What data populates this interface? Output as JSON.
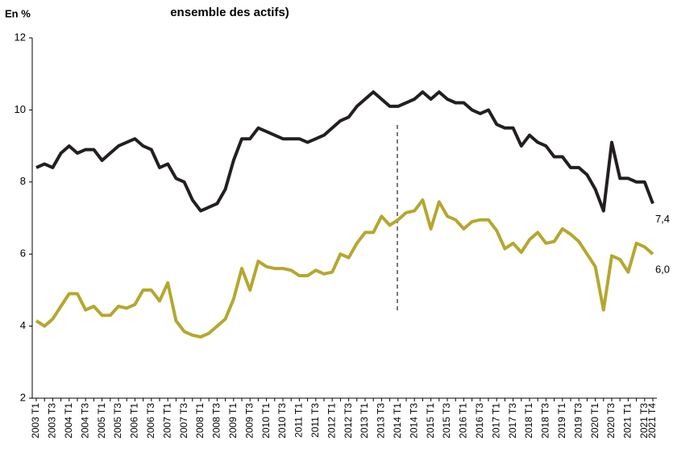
{
  "chart_data": {
    "type": "line",
    "title": "ensemble des actifs)",
    "y_label": "En %",
    "categories": [
      "2003 T1",
      null,
      "2003 T3",
      null,
      "2004 T1",
      null,
      "2004 T3",
      null,
      "2005 T1",
      null,
      "2005 T3",
      null,
      "2006 T1",
      null,
      "2006 T3",
      null,
      "2007 T1",
      null,
      "2007 T3",
      null,
      "2008 T1",
      null,
      "2008 T3",
      null,
      "2009 T1",
      null,
      "2009 T3",
      null,
      "2010 T1",
      null,
      "2010 T3",
      null,
      "2011 T1",
      null,
      "2011 T3",
      null,
      "2012 T1",
      null,
      "2012 T3",
      null,
      "2013 T1",
      null,
      "2013 T3",
      null,
      "2014 T1",
      null,
      "2014 T3",
      null,
      "2015 T1",
      null,
      "2015 T3",
      null,
      "2016 T1",
      null,
      "2016 T3",
      null,
      "2017 T1",
      null,
      "2017 T3",
      null,
      "2018 T1",
      null,
      "2018 T3",
      null,
      "2019 T1",
      null,
      "2019 T3",
      null,
      "2020 T1",
      null,
      "2020 T3",
      null,
      "2021 T1",
      null,
      "2021 T3",
      "2021 T4"
    ],
    "series": [
      {
        "color": "#231f20",
        "values": [
          8.4,
          8.5,
          8.4,
          8.8,
          9.0,
          8.8,
          8.9,
          8.9,
          8.6,
          8.8,
          9.0,
          9.1,
          9.2,
          9.0,
          8.9,
          8.4,
          8.5,
          8.1,
          8.0,
          7.5,
          7.2,
          7.3,
          7.4,
          7.8,
          8.6,
          9.2,
          9.2,
          9.5,
          9.4,
          9.3,
          9.2,
          9.2,
          9.2,
          9.1,
          9.2,
          9.3,
          9.5,
          9.7,
          9.8,
          10.1,
          10.3,
          10.5,
          10.3,
          10.1,
          10.1,
          10.2,
          10.3,
          10.5,
          10.3,
          10.5,
          10.3,
          10.2,
          10.2,
          10.0,
          9.9,
          10.0,
          9.6,
          9.5,
          9.5,
          9.0,
          9.3,
          9.1,
          9.0,
          8.7,
          8.7,
          8.4,
          8.4,
          8.2,
          7.8,
          7.2,
          9.1,
          8.1,
          8.1,
          8.0,
          8.0,
          7.4
        ],
        "value_labels": [
          null,
          null,
          null,
          null,
          null,
          null,
          null,
          null,
          null,
          null,
          null,
          null,
          null,
          null,
          null,
          null,
          null,
          null,
          null,
          null,
          null,
          null,
          null,
          null,
          null,
          null,
          null,
          null,
          null,
          null,
          null,
          null,
          null,
          null,
          null,
          null,
          null,
          null,
          null,
          null,
          null,
          null,
          null,
          null,
          null,
          null,
          null,
          null,
          null,
          null,
          null,
          null,
          null,
          null,
          null,
          null,
          null,
          null,
          null,
          null,
          null,
          null,
          null,
          null,
          null,
          null,
          null,
          null,
          null,
          null,
          null,
          null,
          null,
          null,
          null,
          "7,4"
        ]
      },
      {
        "color": "#b5a72f",
        "values": [
          4.15,
          4.0,
          4.2,
          4.55,
          4.9,
          4.9,
          4.45,
          4.55,
          4.3,
          4.3,
          4.55,
          4.5,
          4.6,
          5.0,
          5.0,
          4.7,
          5.2,
          4.15,
          3.85,
          3.75,
          3.7,
          3.8,
          4.0,
          4.2,
          4.75,
          5.6,
          5.0,
          5.8,
          5.65,
          5.6,
          5.6,
          5.55,
          5.4,
          5.4,
          5.55,
          5.45,
          5.5,
          6.0,
          5.9,
          6.3,
          6.6,
          6.6,
          7.05,
          6.8,
          6.95,
          7.15,
          7.2,
          7.5,
          6.7,
          7.45,
          7.05,
          6.95,
          6.7,
          6.9,
          6.95,
          6.95,
          6.65,
          6.15,
          6.3,
          6.05,
          6.4,
          6.6,
          6.3,
          6.35,
          6.7,
          6.55,
          6.35,
          6.0,
          5.65,
          4.45,
          5.95,
          5.85,
          5.5,
          6.3,
          6.2,
          6.0
        ],
        "value_labels": [
          null,
          null,
          null,
          null,
          null,
          null,
          null,
          null,
          null,
          null,
          null,
          null,
          null,
          null,
          null,
          null,
          null,
          null,
          null,
          null,
          null,
          null,
          null,
          null,
          null,
          null,
          null,
          null,
          null,
          null,
          null,
          null,
          null,
          null,
          null,
          null,
          null,
          null,
          null,
          null,
          null,
          null,
          null,
          null,
          null,
          null,
          null,
          null,
          null,
          null,
          null,
          null,
          null,
          null,
          null,
          null,
          null,
          null,
          null,
          null,
          null,
          null,
          null,
          null,
          null,
          null,
          null,
          null,
          null,
          null,
          null,
          null,
          null,
          null,
          null,
          "6,0"
        ]
      }
    ],
    "ylim": [
      2,
      12
    ],
    "yticks": [
      2,
      4,
      6,
      8,
      10,
      12
    ],
    "grid": false
  }
}
